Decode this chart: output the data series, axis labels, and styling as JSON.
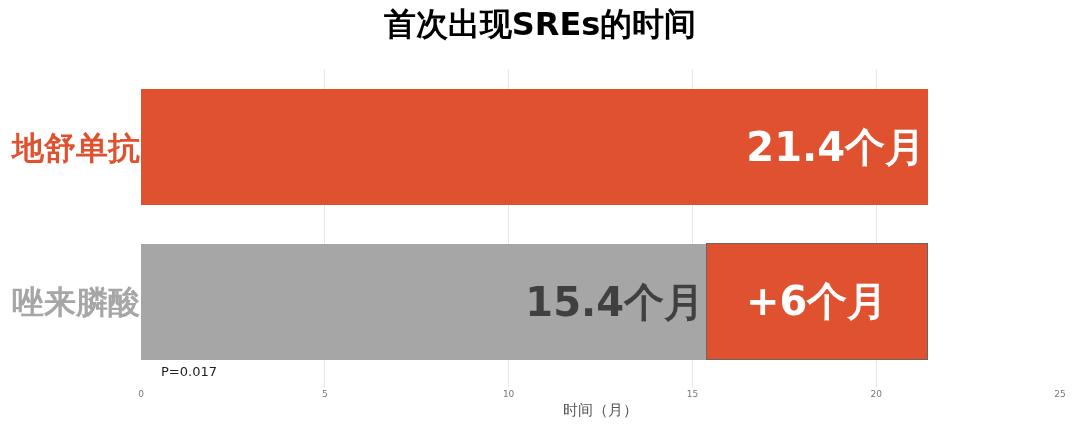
{
  "chart_data": {
    "type": "bar",
    "orientation": "horizontal",
    "stacked": true,
    "title": "首次出现SREs的时间",
    "xlabel": "时间（月）",
    "categories": [
      "地舒单抗",
      "唑来膦酸"
    ],
    "series": [
      {
        "colors": [
          "#e0522f",
          "#a6a6a6"
        ],
        "values": [
          21.4,
          15.4
        ],
        "value_labels": [
          "21.4个月",
          "15.4个月"
        ]
      },
      {
        "color": "#e0522f",
        "values": [
          null,
          6
        ],
        "value_labels": [
          null,
          "+6个月"
        ]
      }
    ],
    "xlim": [
      0,
      25
    ],
    "xticks": [
      0,
      5,
      10,
      15,
      20,
      25
    ],
    "grid": "x",
    "annotations": [
      "P=0.017"
    ]
  }
}
